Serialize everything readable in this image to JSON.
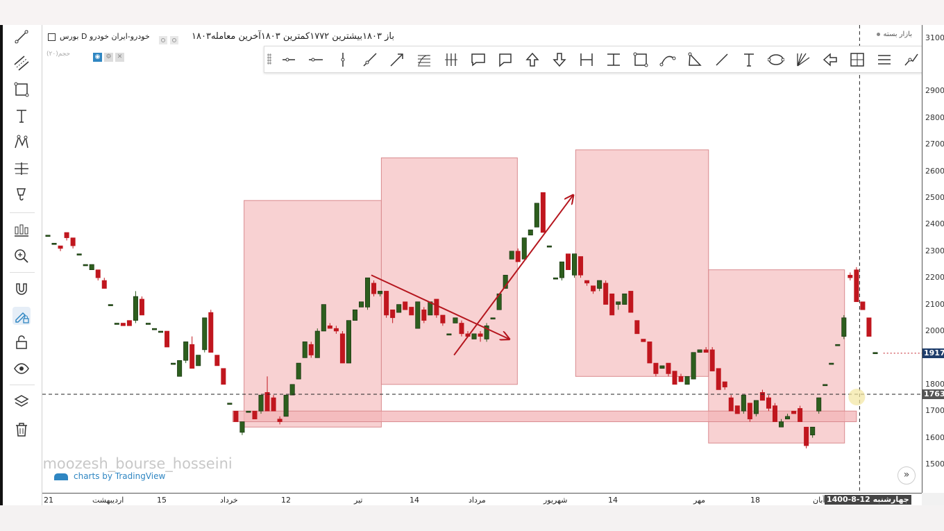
{
  "legend": {
    "symbol_title": "بورس D خودرو-ایران خودرو",
    "ohlc_text": "۱۸۰۳باز   ۱۸۰۳بیشترین   ۱۷۷۲کمترین   ۱۸۰۳آخرین معامله",
    "volume_label": "حجم(۲۰)",
    "market_status": "بازار بسته"
  },
  "left_toolbar": {
    "tools": [
      "trend-line-icon",
      "channel-icon",
      "rectangle-icon",
      "text-icon",
      "pattern-icon",
      "measure-icon",
      "brush-icon",
      "indicators-icon",
      "zoom-in-icon",
      "magnet-icon",
      "pencil-lock-icon",
      "unlock-icon",
      "eye-icon",
      "layers-icon",
      "trash-icon"
    ]
  },
  "drawing_toolbar": {
    "tools": [
      "horizontal-ray-icon",
      "horizontal-line-icon",
      "vertical-line-icon",
      "trend-line-icon",
      "arrow-line-icon",
      "fib-retracement-icon",
      "pitchfork-icon",
      "callout-icon",
      "comment-icon",
      "arrow-up-icon",
      "arrow-down-icon",
      "date-range-icon",
      "price-range-icon",
      "rectangle-icon",
      "curve-icon",
      "triangle-icon",
      "line-segment-icon",
      "text-icon",
      "ellipse-icon",
      "gann-fan-icon",
      "arrow-left-icon",
      "crosshair-box-icon",
      "menu-lines-icon",
      "path-icon",
      "polyline-icon"
    ]
  },
  "price_axis": {
    "ticks": [
      "3100",
      "2900",
      "2800",
      "2700",
      "2600",
      "2500",
      "2400",
      "2300",
      "2200",
      "2100",
      "2000",
      "1800",
      "1700",
      "1600",
      "1500"
    ],
    "current_price_badge": "1917",
    "crosshair_badge": "1763",
    "colors": {
      "current_badge": "#1e3d6b",
      "crosshair_badge": "#555555"
    }
  },
  "time_axis": {
    "ticks": [
      "21",
      "اردیبهشت",
      "15",
      "خرداد",
      "12",
      "تیر",
      "14",
      "مرداد",
      "شهریور",
      "14",
      "مهر",
      "18",
      "آبان"
    ],
    "crosshair_date": "جهارشنبه 12-8-1400"
  },
  "chart_data": {
    "type": "candlestick",
    "y_axis_range": [
      1500,
      3100
    ],
    "x_axis": "time",
    "colors": {
      "up": "#2d5e1e",
      "down": "#c0161e",
      "zone_fill": "#f3b4b7",
      "arrow": "#b5161e"
    },
    "candles": [
      {
        "open": 2360,
        "close": 2360,
        "high": 2360,
        "low": 2360
      },
      {
        "open": 2330,
        "close": 2330,
        "high": 2330,
        "low": 2330
      },
      {
        "open": 2320,
        "close": 2310,
        "high": 2320,
        "low": 2300
      },
      {
        "open": 2370,
        "close": 2350,
        "high": 2370,
        "low": 2340
      },
      {
        "open": 2350,
        "close": 2320,
        "high": 2350,
        "low": 2310
      },
      {
        "open": 2290,
        "close": 2290,
        "high": 2290,
        "low": 2290
      },
      {
        "open": 2250,
        "close": 2250,
        "high": 2250,
        "low": 2250
      },
      {
        "open": 2230,
        "close": 2250,
        "high": 2250,
        "low": 2230
      },
      {
        "open": 2230,
        "close": 2200,
        "high": 2230,
        "low": 2190
      },
      {
        "open": 2190,
        "close": 2160,
        "high": 2200,
        "low": 2160
      },
      {
        "open": 2100,
        "close": 2100,
        "high": 2100,
        "low": 2100
      },
      {
        "open": 2030,
        "close": 2030,
        "high": 2030,
        "low": 2030
      },
      {
        "open": 2030,
        "close": 2020,
        "high": 2030,
        "low": 2020
      },
      {
        "open": 2040,
        "close": 2020,
        "high": 2040,
        "low": 2020
      },
      {
        "open": 2040,
        "close": 2130,
        "high": 2150,
        "low": 2030
      },
      {
        "open": 2120,
        "close": 2060,
        "high": 2130,
        "low": 2060
      },
      {
        "open": 2030,
        "close": 2030,
        "high": 2030,
        "low": 2030
      },
      {
        "open": 2010,
        "close": 2010,
        "high": 2010,
        "low": 2010
      },
      {
        "open": 2000,
        "close": 2000,
        "high": 2000,
        "low": 2000
      },
      {
        "open": 2000,
        "close": 1940,
        "high": 2000,
        "low": 1940
      },
      {
        "open": 1880,
        "close": 1880,
        "high": 1880,
        "low": 1880
      },
      {
        "open": 1830,
        "close": 1890,
        "high": 1890,
        "low": 1830
      },
      {
        "open": 1890,
        "close": 1960,
        "high": 1960,
        "low": 1880
      },
      {
        "open": 1950,
        "close": 1860,
        "high": 1980,
        "low": 1860
      },
      {
        "open": 1870,
        "close": 1910,
        "high": 1910,
        "low": 1870
      },
      {
        "open": 1930,
        "close": 2050,
        "high": 2050,
        "low": 1920
      },
      {
        "open": 2070,
        "close": 1920,
        "high": 2080,
        "low": 1920
      },
      {
        "open": 1910,
        "close": 1870,
        "high": 1910,
        "low": 1870
      },
      {
        "open": 1860,
        "close": 1800,
        "high": 1860,
        "low": 1800
      },
      {
        "open": 1730,
        "close": 1730,
        "high": 1730,
        "low": 1730
      },
      {
        "open": 1700,
        "close": 1660,
        "high": 1700,
        "low": 1660
      },
      {
        "open": 1620,
        "close": 1660,
        "high": 1660,
        "low": 1610
      },
      {
        "open": 1700,
        "close": 1700,
        "high": 1700,
        "low": 1700
      },
      {
        "open": 1700,
        "close": 1670,
        "high": 1700,
        "low": 1670
      },
      {
        "open": 1700,
        "close": 1760,
        "high": 1760,
        "low": 1690
      },
      {
        "open": 1770,
        "close": 1700,
        "high": 1830,
        "low": 1700
      },
      {
        "open": 1750,
        "close": 1700,
        "high": 1760,
        "low": 1700
      },
      {
        "open": 1670,
        "close": 1660,
        "high": 1680,
        "low": 1650
      },
      {
        "open": 1680,
        "close": 1760,
        "high": 1760,
        "low": 1680
      },
      {
        "open": 1760,
        "close": 1800,
        "high": 1800,
        "low": 1760
      },
      {
        "open": 1820,
        "close": 1880,
        "high": 1880,
        "low": 1820
      },
      {
        "open": 1900,
        "close": 1960,
        "high": 1960,
        "low": 1900
      },
      {
        "open": 1950,
        "close": 1910,
        "high": 1960,
        "low": 1900
      },
      {
        "open": 1900,
        "close": 2000,
        "high": 2010,
        "low": 1900
      },
      {
        "open": 2000,
        "close": 2100,
        "high": 2100,
        "low": 2000
      },
      {
        "open": 2020,
        "close": 2010,
        "high": 2030,
        "low": 2010
      },
      {
        "open": 2010,
        "close": 2000,
        "high": 2020,
        "low": 1990
      },
      {
        "open": 1990,
        "close": 1880,
        "high": 2000,
        "low": 1880
      },
      {
        "open": 1880,
        "close": 2040,
        "high": 2040,
        "low": 1880
      },
      {
        "open": 2040,
        "close": 2080,
        "high": 2080,
        "low": 2040
      },
      {
        "open": 2090,
        "close": 2110,
        "high": 2110,
        "low": 2090
      },
      {
        "open": 2090,
        "close": 2200,
        "high": 2200,
        "low": 2080
      },
      {
        "open": 2180,
        "close": 2140,
        "high": 2190,
        "low": 2130
      },
      {
        "open": 2140,
        "close": 2150,
        "high": 2150,
        "low": 2130
      },
      {
        "open": 2150,
        "close": 2060,
        "high": 2150,
        "low": 2050
      },
      {
        "open": 2080,
        "close": 2050,
        "high": 2080,
        "low": 2030
      },
      {
        "open": 2070,
        "close": 2100,
        "high": 2100,
        "low": 2070
      },
      {
        "open": 2110,
        "close": 2080,
        "high": 2110,
        "low": 2080
      },
      {
        "open": 2090,
        "close": 2060,
        "high": 2090,
        "low": 2060
      },
      {
        "open": 2010,
        "close": 2110,
        "high": 2110,
        "low": 2010
      },
      {
        "open": 2080,
        "close": 2040,
        "high": 2090,
        "low": 2030
      },
      {
        "open": 2060,
        "close": 2110,
        "high": 2110,
        "low": 2060
      },
      {
        "open": 2120,
        "close": 2060,
        "high": 2120,
        "low": 2050
      },
      {
        "open": 2060,
        "close": 2030,
        "high": 2060,
        "low": 2020
      },
      {
        "open": 1990,
        "close": 1990,
        "high": 1990,
        "low": 1990
      },
      {
        "open": 2030,
        "close": 2050,
        "high": 2050,
        "low": 2030
      },
      {
        "open": 2030,
        "close": 1990,
        "high": 2040,
        "low": 1980
      },
      {
        "open": 1990,
        "close": 1980,
        "high": 2000,
        "low": 1980
      },
      {
        "open": 1970,
        "close": 1990,
        "high": 1990,
        "low": 1970
      },
      {
        "open": 1990,
        "close": 1980,
        "high": 2000,
        "low": 1960
      },
      {
        "open": 1970,
        "close": 2020,
        "high": 2030,
        "low": 1960
      },
      {
        "open": 2050,
        "close": 2050,
        "high": 2050,
        "low": 2050
      },
      {
        "open": 2080,
        "close": 2140,
        "high": 2140,
        "low": 2080
      },
      {
        "open": 2160,
        "close": 2210,
        "high": 2210,
        "low": 2160
      },
      {
        "open": 2270,
        "close": 2300,
        "high": 2300,
        "low": 2270
      },
      {
        "open": 2300,
        "close": 2260,
        "high": 2310,
        "low": 2260
      },
      {
        "open": 2270,
        "close": 2350,
        "high": 2350,
        "low": 2270
      },
      {
        "open": 2360,
        "close": 2380,
        "high": 2380,
        "low": 2360
      },
      {
        "open": 2390,
        "close": 2480,
        "high": 2480,
        "low": 2390
      },
      {
        "open": 2520,
        "close": 2370,
        "high": 2520,
        "low": 2370
      },
      {
        "open": 2320,
        "close": 2320,
        "high": 2320,
        "low": 2320
      },
      {
        "open": 2200,
        "close": 2200,
        "high": 2200,
        "low": 2200
      },
      {
        "open": 2200,
        "close": 2260,
        "high": 2260,
        "low": 2190
      },
      {
        "open": 2290,
        "close": 2230,
        "high": 2290,
        "low": 2230
      },
      {
        "open": 2210,
        "close": 2290,
        "high": 2290,
        "low": 2200
      },
      {
        "open": 2280,
        "close": 2210,
        "high": 2280,
        "low": 2200
      },
      {
        "open": 2190,
        "close": 2180,
        "high": 2190,
        "low": 2170
      },
      {
        "open": 2170,
        "close": 2150,
        "high": 2170,
        "low": 2140
      },
      {
        "open": 2160,
        "close": 2190,
        "high": 2190,
        "low": 2150
      },
      {
        "open": 2180,
        "close": 2100,
        "high": 2190,
        "low": 2100
      },
      {
        "open": 2140,
        "close": 2060,
        "high": 2140,
        "low": 2060
      },
      {
        "open": 2100,
        "close": 2110,
        "high": 2110,
        "low": 2080
      },
      {
        "open": 2100,
        "close": 2140,
        "high": 2140,
        "low": 2100
      },
      {
        "open": 2150,
        "close": 2070,
        "high": 2150,
        "low": 2070
      },
      {
        "open": 2040,
        "close": 1990,
        "high": 2040,
        "low": 1990
      },
      {
        "open": 1970,
        "close": 1960,
        "high": 1970,
        "low": 1960
      },
      {
        "open": 1960,
        "close": 1880,
        "high": 1960,
        "low": 1880
      },
      {
        "open": 1880,
        "close": 1840,
        "high": 1880,
        "low": 1830
      },
      {
        "open": 1860,
        "close": 1870,
        "high": 1870,
        "low": 1860
      },
      {
        "open": 1880,
        "close": 1840,
        "high": 1880,
        "low": 1830
      },
      {
        "open": 1850,
        "close": 1800,
        "high": 1850,
        "low": 1800
      },
      {
        "open": 1830,
        "close": 1810,
        "high": 1840,
        "low": 1810
      },
      {
        "open": 1800,
        "close": 1830,
        "high": 1830,
        "low": 1800
      },
      {
        "open": 1820,
        "close": 1920,
        "high": 1920,
        "low": 1820
      },
      {
        "open": 1920,
        "close": 1930,
        "high": 1930,
        "low": 1920
      },
      {
        "open": 1930,
        "close": 1920,
        "high": 1940,
        "low": 1920
      },
      {
        "open": 1930,
        "close": 1850,
        "high": 1940,
        "low": 1850
      },
      {
        "open": 1860,
        "close": 1780,
        "high": 1860,
        "low": 1780
      },
      {
        "open": 1810,
        "close": 1790,
        "high": 1810,
        "low": 1780
      },
      {
        "open": 1750,
        "close": 1700,
        "high": 1760,
        "low": 1700
      },
      {
        "open": 1720,
        "close": 1690,
        "high": 1720,
        "low": 1690
      },
      {
        "open": 1700,
        "close": 1760,
        "high": 1760,
        "low": 1690
      },
      {
        "open": 1730,
        "close": 1670,
        "high": 1730,
        "low": 1660
      },
      {
        "open": 1690,
        "close": 1740,
        "high": 1740,
        "low": 1680
      },
      {
        "open": 1770,
        "close": 1740,
        "high": 1780,
        "low": 1740
      },
      {
        "open": 1750,
        "close": 1710,
        "high": 1760,
        "low": 1700
      },
      {
        "open": 1720,
        "close": 1660,
        "high": 1730,
        "low": 1660
      },
      {
        "open": 1640,
        "close": 1660,
        "high": 1670,
        "low": 1640
      },
      {
        "open": 1670,
        "close": 1680,
        "high": 1690,
        "low": 1670
      },
      {
        "open": 1700,
        "close": 1690,
        "high": 1700,
        "low": 1690
      },
      {
        "open": 1710,
        "close": 1660,
        "high": 1720,
        "low": 1660
      },
      {
        "open": 1640,
        "close": 1570,
        "high": 1640,
        "low": 1560
      },
      {
        "open": 1610,
        "close": 1640,
        "high": 1640,
        "low": 1600
      },
      {
        "open": 1700,
        "close": 1750,
        "high": 1750,
        "low": 1690
      },
      {
        "open": 1800,
        "close": 1800,
        "high": 1800,
        "low": 1800
      },
      {
        "open": 1880,
        "close": 1880,
        "high": 1880,
        "low": 1880
      },
      {
        "open": 1950,
        "close": 1950,
        "high": 1950,
        "low": 1950
      },
      {
        "open": 1980,
        "close": 2050,
        "high": 2060,
        "low": 1970
      },
      {
        "open": 2210,
        "close": 2200,
        "high": 2220,
        "low": 2190
      },
      {
        "open": 2230,
        "close": 2110,
        "high": 2240,
        "low": 2110
      },
      {
        "open": 2110,
        "close": 2080,
        "high": 2110,
        "low": 2080
      },
      {
        "open": 2050,
        "close": 1980,
        "high": 2050,
        "low": 1980
      },
      {
        "open": 1920,
        "close": 1920,
        "high": 1920,
        "low": 1920
      }
    ],
    "levels": {
      "support_zone": [
        1660,
        1700
      ],
      "crosshair_price": 1763,
      "last_price": 1917
    }
  },
  "credits": {
    "watermark": "/Amoozesh_bourse_hosseini",
    "tradingview": "charts by TradingView"
  }
}
